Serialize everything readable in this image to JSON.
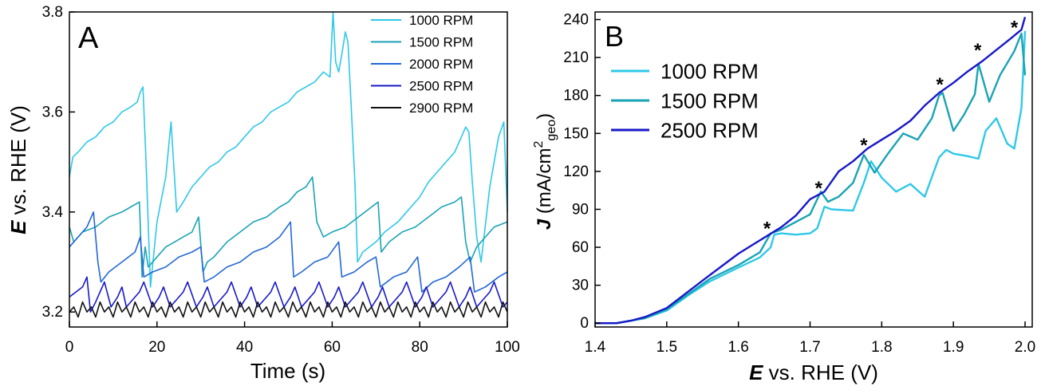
{
  "chart_data": [
    {
      "panel_label": "A",
      "type": "line",
      "xlabel": "Time (s)",
      "ylabel_bold": "E",
      "ylabel_rest": " vs. RHE (V)",
      "xlim": [
        0,
        100
      ],
      "ylim": [
        3.17,
        3.8
      ],
      "xticks": [
        0,
        20,
        40,
        60,
        80,
        100
      ],
      "yticks": [
        3.2,
        3.4,
        3.6,
        3.8
      ],
      "grid": false,
      "legend_position": "top-right",
      "series": [
        {
          "name": "1000 RPM",
          "color": "#2fc8e8",
          "x": [
            0,
            0.8,
            2,
            4,
            6,
            8,
            10,
            12,
            14,
            15.5,
            16.2,
            16.8,
            17.5,
            18.5,
            20,
            22,
            23.2,
            24.5,
            26,
            28,
            30,
            32,
            34,
            36,
            38,
            40,
            42,
            44,
            46,
            48,
            50,
            52,
            54,
            56,
            58,
            59.5,
            60.2,
            60.8,
            61.5,
            62.3,
            63,
            63.6,
            64.4,
            65.2,
            65.8,
            67,
            70,
            72,
            75,
            78,
            80,
            82,
            84,
            86,
            88,
            89.5,
            90.5,
            91.2,
            92,
            93,
            94,
            96,
            98,
            99.2,
            100
          ],
          "y": [
            3.47,
            3.51,
            3.52,
            3.54,
            3.55,
            3.57,
            3.58,
            3.6,
            3.61,
            3.62,
            3.64,
            3.65,
            3.5,
            3.25,
            3.38,
            3.47,
            3.58,
            3.4,
            3.42,
            3.45,
            3.47,
            3.49,
            3.5,
            3.52,
            3.53,
            3.55,
            3.57,
            3.58,
            3.6,
            3.61,
            3.62,
            3.64,
            3.65,
            3.66,
            3.68,
            3.67,
            3.8,
            3.7,
            3.68,
            3.72,
            3.76,
            3.74,
            3.6,
            3.46,
            3.3,
            3.32,
            3.34,
            3.36,
            3.38,
            3.41,
            3.43,
            3.46,
            3.48,
            3.5,
            3.52,
            3.55,
            3.57,
            3.56,
            3.46,
            3.35,
            3.3,
            3.45,
            3.55,
            3.58,
            3.4
          ]
        },
        {
          "name": "1500 RPM",
          "color": "#1aa3b5",
          "x": [
            0,
            1,
            3,
            6,
            9,
            12,
            14,
            16,
            16.6,
            17.3,
            18,
            20,
            22,
            24,
            26,
            28,
            29.5,
            30.5,
            31.5,
            33,
            36,
            39,
            42,
            45,
            48,
            50,
            52,
            54,
            55.5,
            56.5,
            58,
            60,
            63,
            66,
            69,
            70.5,
            71.2,
            73,
            76,
            79,
            82,
            85,
            88,
            89.5,
            90.5,
            91.5,
            93,
            95,
            97,
            100
          ],
          "y": [
            3.37,
            3.34,
            3.36,
            3.37,
            3.39,
            3.4,
            3.41,
            3.42,
            3.27,
            3.33,
            3.29,
            3.31,
            3.33,
            3.34,
            3.35,
            3.36,
            3.39,
            3.28,
            3.3,
            3.31,
            3.34,
            3.36,
            3.38,
            3.39,
            3.41,
            3.42,
            3.44,
            3.45,
            3.47,
            3.38,
            3.35,
            3.36,
            3.37,
            3.39,
            3.41,
            3.42,
            3.32,
            3.34,
            3.36,
            3.37,
            3.39,
            3.41,
            3.42,
            3.43,
            3.34,
            3.3,
            3.33,
            3.35,
            3.37,
            3.38
          ]
        },
        {
          "name": "2000 RPM",
          "color": "#2268d6",
          "x": [
            0,
            2,
            4,
            5.5,
            6.5,
            7.2,
            9,
            12,
            15,
            16.2,
            17,
            19,
            22,
            25,
            28,
            30,
            30.8,
            33,
            36,
            39,
            42,
            45,
            48,
            50.5,
            51.2,
            53,
            56,
            59,
            61.5,
            62.2,
            65,
            68,
            70,
            71,
            74,
            77,
            79.5,
            80.5,
            83,
            86,
            89,
            91.5,
            92.5,
            95,
            98,
            100
          ],
          "y": [
            3.33,
            3.35,
            3.37,
            3.4,
            3.3,
            3.26,
            3.28,
            3.3,
            3.32,
            3.35,
            3.27,
            3.28,
            3.29,
            3.31,
            3.32,
            3.33,
            3.26,
            3.27,
            3.29,
            3.3,
            3.32,
            3.33,
            3.35,
            3.38,
            3.27,
            3.28,
            3.3,
            3.31,
            3.34,
            3.27,
            3.28,
            3.3,
            3.31,
            3.25,
            3.27,
            3.28,
            3.31,
            3.24,
            3.26,
            3.27,
            3.29,
            3.31,
            3.24,
            3.25,
            3.27,
            3.28
          ]
        },
        {
          "name": "2500 RPM",
          "color": "#1818c8",
          "x": [
            0,
            1.5,
            3,
            4,
            4.8,
            6,
            7,
            8,
            9.5,
            11,
            12,
            13,
            15,
            16,
            17,
            19,
            20.5,
            21.5,
            23,
            25,
            26,
            27,
            29,
            30.5,
            31.5,
            33,
            35,
            36,
            37,
            39,
            40.5,
            41.5,
            43,
            45,
            46,
            47,
            49,
            50.5,
            51.5,
            53,
            55,
            56,
            57,
            59,
            60.5,
            61.5,
            63,
            65,
            66,
            67,
            69,
            70.5,
            71.5,
            73,
            75,
            76,
            77,
            79,
            80.5,
            81.5,
            83,
            85,
            86,
            87,
            89,
            90.5,
            91.5,
            93,
            95,
            96,
            97,
            99,
            100
          ],
          "y": [
            3.23,
            3.24,
            3.25,
            3.27,
            3.2,
            3.22,
            3.24,
            3.26,
            3.21,
            3.23,
            3.25,
            3.21,
            3.23,
            3.24,
            3.26,
            3.21,
            3.23,
            3.25,
            3.21,
            3.23,
            3.24,
            3.26,
            3.21,
            3.23,
            3.25,
            3.21,
            3.23,
            3.24,
            3.26,
            3.21,
            3.23,
            3.25,
            3.21,
            3.23,
            3.24,
            3.26,
            3.21,
            3.23,
            3.25,
            3.21,
            3.23,
            3.24,
            3.26,
            3.21,
            3.23,
            3.25,
            3.21,
            3.23,
            3.24,
            3.26,
            3.21,
            3.23,
            3.25,
            3.21,
            3.23,
            3.24,
            3.26,
            3.21,
            3.23,
            3.25,
            3.21,
            3.23,
            3.24,
            3.26,
            3.21,
            3.23,
            3.25,
            3.21,
            3.23,
            3.24,
            3.26,
            3.21,
            3.22
          ]
        },
        {
          "name": "2900 RPM",
          "color": "#111111",
          "x": [
            0,
            1,
            2,
            3,
            4,
            5,
            6,
            7,
            8,
            9,
            10,
            11,
            12,
            13,
            14,
            15,
            16,
            17,
            18,
            19,
            20,
            21,
            22,
            23,
            24,
            25,
            26,
            27,
            28,
            29,
            30,
            31,
            32,
            33,
            34,
            35,
            36,
            37,
            38,
            39,
            40,
            41,
            42,
            43,
            44,
            45,
            46,
            47,
            48,
            49,
            50,
            51,
            52,
            53,
            54,
            55,
            56,
            57,
            58,
            59,
            60,
            61,
            62,
            63,
            64,
            65,
            66,
            67,
            68,
            69,
            70,
            71,
            72,
            73,
            74,
            75,
            76,
            77,
            78,
            79,
            80,
            81,
            82,
            83,
            84,
            85,
            86,
            87,
            88,
            89,
            90,
            91,
            92,
            93,
            94,
            95,
            96,
            97,
            98,
            99,
            100
          ],
          "y": [
            3.2,
            3.21,
            3.19,
            3.22,
            3.2,
            3.21,
            3.19,
            3.22,
            3.2,
            3.21,
            3.19,
            3.22,
            3.2,
            3.21,
            3.19,
            3.22,
            3.2,
            3.21,
            3.19,
            3.22,
            3.2,
            3.21,
            3.19,
            3.22,
            3.2,
            3.21,
            3.19,
            3.22,
            3.2,
            3.21,
            3.19,
            3.22,
            3.2,
            3.21,
            3.19,
            3.22,
            3.2,
            3.21,
            3.19,
            3.22,
            3.2,
            3.21,
            3.19,
            3.22,
            3.2,
            3.21,
            3.19,
            3.22,
            3.2,
            3.21,
            3.19,
            3.22,
            3.2,
            3.21,
            3.19,
            3.22,
            3.2,
            3.21,
            3.19,
            3.22,
            3.2,
            3.21,
            3.19,
            3.22,
            3.2,
            3.21,
            3.19,
            3.22,
            3.2,
            3.21,
            3.19,
            3.22,
            3.2,
            3.21,
            3.19,
            3.22,
            3.2,
            3.21,
            3.19,
            3.22,
            3.2,
            3.21,
            3.19,
            3.22,
            3.2,
            3.21,
            3.19,
            3.22,
            3.2,
            3.21,
            3.19,
            3.22,
            3.2,
            3.21,
            3.19,
            3.22,
            3.2,
            3.21,
            3.19,
            3.22,
            3.2
          ]
        }
      ]
    },
    {
      "panel_label": "B",
      "type": "line",
      "xlabel_bold": "E",
      "xlabel_rest": " vs. RHE (V)",
      "ylabel_bold": "J",
      "ylabel_rest": " (mA/cm",
      "ylabel_sup": "2",
      "ylabel_sub": "geo",
      "ylabel_close": ")",
      "xlim": [
        1.4,
        2.01
      ],
      "ylim": [
        -3,
        246
      ],
      "xticks": [
        1.4,
        1.5,
        1.6,
        1.7,
        1.8,
        1.9,
        2.0
      ],
      "xtick_labels": [
        "1.4",
        "1.5",
        "1.6",
        "1.7",
        "1.8",
        "1.9",
        "2.0"
      ],
      "yticks": [
        0,
        30,
        60,
        90,
        120,
        150,
        180,
        210,
        240
      ],
      "grid": false,
      "legend_position": "top-left",
      "annotation_text": "*",
      "annotations": [
        {
          "x": 1.64,
          "y": 76
        },
        {
          "x": 1.712,
          "y": 108
        },
        {
          "x": 1.775,
          "y": 142
        },
        {
          "x": 1.881,
          "y": 190
        },
        {
          "x": 1.934,
          "y": 217
        },
        {
          "x": 1.985,
          "y": 235
        }
      ],
      "series": [
        {
          "name": "1000 RPM",
          "color": "#2fc8e8",
          "x": [
            1.4,
            1.43,
            1.45,
            1.47,
            1.5,
            1.53,
            1.56,
            1.6,
            1.63,
            1.645,
            1.65,
            1.66,
            1.68,
            1.7,
            1.71,
            1.72,
            1.73,
            1.76,
            1.775,
            1.785,
            1.8,
            1.82,
            1.84,
            1.86,
            1.88,
            1.89,
            1.9,
            1.92,
            1.935,
            1.945,
            1.96,
            1.975,
            1.985,
            1.995,
            2.0
          ],
          "y": [
            0,
            0,
            2,
            4,
            10,
            22,
            33,
            44,
            52,
            60,
            70,
            71,
            70,
            71,
            75,
            92,
            90,
            89,
            111,
            128,
            115,
            104,
            110,
            100,
            131,
            137,
            134,
            132,
            130,
            152,
            162,
            142,
            138,
            170,
            231
          ]
        },
        {
          "name": "1500 RPM",
          "color": "#1aa3b5",
          "x": [
            1.4,
            1.43,
            1.45,
            1.47,
            1.5,
            1.53,
            1.56,
            1.6,
            1.63,
            1.645,
            1.66,
            1.68,
            1.7,
            1.715,
            1.725,
            1.74,
            1.76,
            1.775,
            1.79,
            1.81,
            1.83,
            1.85,
            1.87,
            1.88,
            1.885,
            1.9,
            1.915,
            1.93,
            1.935,
            1.95,
            1.965,
            1.985,
            1.995,
            2.0
          ],
          "y": [
            0,
            0,
            2,
            4,
            11,
            23,
            35,
            46,
            56,
            71,
            74,
            80,
            86,
            104,
            96,
            100,
            111,
            133,
            119,
            135,
            150,
            145,
            162,
            180,
            182,
            152,
            165,
            181,
            205,
            175,
            196,
            215,
            229,
            196
          ]
        },
        {
          "name": "2500 RPM",
          "color": "#1818c8",
          "x": [
            1.4,
            1.43,
            1.45,
            1.47,
            1.5,
            1.53,
            1.56,
            1.6,
            1.62,
            1.64,
            1.66,
            1.68,
            1.7,
            1.72,
            1.74,
            1.76,
            1.78,
            1.8,
            1.82,
            1.84,
            1.86,
            1.88,
            1.9,
            1.92,
            1.94,
            1.96,
            1.98,
            1.995,
            2.0
          ],
          "y": [
            0,
            0,
            2,
            5,
            12,
            25,
            38,
            55,
            62,
            69,
            76,
            85,
            98,
            104,
            120,
            128,
            138,
            145,
            152,
            160,
            172,
            182,
            190,
            199,
            207,
            216,
            225,
            232,
            242
          ]
        }
      ]
    }
  ]
}
